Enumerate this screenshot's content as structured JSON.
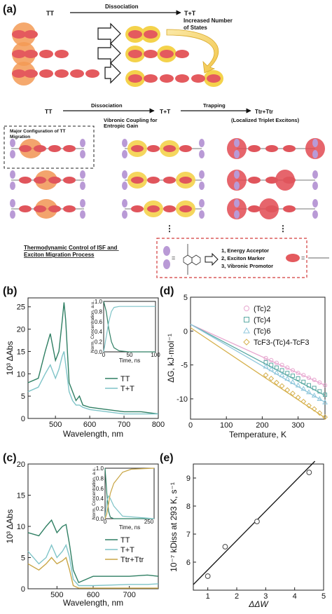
{
  "panel_a": {
    "label": "(a)",
    "top": {
      "TT": "TT",
      "arrow": "Dissociation",
      "TpT": "T+T",
      "note": "Increased Number\nof States"
    },
    "mid": {
      "TT": "TT",
      "dissociation": "Dissociation",
      "TpT": "T+T",
      "trapping": "Trapping",
      "Ttr": "Ttr+Ttr",
      "localized": "(Localized Triplet Excitons)",
      "migration": "Major Configuration of TT\nMigration",
      "vibronic": "Vibronic Coupling for\nEntropic Gain",
      "dots": "⋮"
    },
    "bottom": {
      "thermo": "Thermodynamic Control of ISF and\nExciton Migration Process",
      "roles": [
        "1, Energy Acceptor",
        "2, Exciton Marker",
        "3, Vibronic Promotor"
      ],
      "eq": "="
    }
  },
  "panel_b": {
    "label": "(b)",
    "ylabel": "10³ ΔAbs",
    "xlabel": "Wavelength, nm",
    "xticks": [
      "500",
      "600",
      "700",
      "800"
    ],
    "yticks": [
      "0",
      "5",
      "10",
      "15",
      "20",
      "25"
    ],
    "legend": [
      "TT",
      "T+T"
    ],
    "inset_ylabel": "Norm. Concentration, a.u.",
    "inset_xlabel": "Time, ns",
    "inset_xticks": [
      "0",
      "50",
      "100"
    ],
    "inset_yticks": [
      "0.0",
      "0.2",
      "0.4",
      "0.6",
      "0.8",
      "1.0"
    ]
  },
  "panel_c": {
    "label": "(c)",
    "ylabel": "10³ ΔAbs",
    "xlabel": "Wavelength, nm",
    "xticks": [
      "500",
      "600",
      "700"
    ],
    "yticks": [
      "0",
      "5",
      "10",
      "15",
      "20"
    ],
    "legend": [
      "TT",
      "T+T",
      "Ttr+Ttr"
    ],
    "inset_ylabel": "Norm. Concentration, a.u.",
    "inset_xlabel": "Time, ns",
    "inset_xticks": [
      "0",
      "250"
    ],
    "inset_yticks": [
      "0.0",
      "0.2",
      "0.4",
      "0.6",
      "0.8",
      "1.0"
    ]
  },
  "panel_d": {
    "label": "(d)",
    "ylabel": "ΔG, kJ·mol⁻¹",
    "xlabel": "Temperature, K",
    "xticks": [
      "0",
      "100",
      "200",
      "300"
    ],
    "yticks": [
      "5",
      "0",
      "-5",
      "-10"
    ],
    "legend": [
      "(Tc)2",
      "(Tc)4",
      "(Tc)6",
      "TcF3-(Tc)4-TcF3"
    ]
  },
  "panel_e": {
    "label": "(e)",
    "ylabel": "10⁻⁷ kDiss at 293 K, s⁻¹",
    "xlabel": "ΔΔW",
    "xticks": [
      "1",
      "2",
      "3",
      "4",
      "5"
    ],
    "yticks": [
      "6",
      "7",
      "8",
      "9"
    ]
  },
  "colors": {
    "tt": "#2f7f63",
    "tpt": "#7fc4c8",
    "ttr": "#c9a646",
    "pink": "#e7a6cf",
    "teal": "#5aa9a3",
    "skyblue": "#8fc7dc",
    "gold": "#d6b04c",
    "red": "#e0555c",
    "orange": "#f08d48",
    "yellow": "#f4d24b",
    "purple": "#b99ad6"
  },
  "chart_data": [
    {
      "type": "line",
      "panel": "b",
      "xlabel": "Wavelength, nm",
      "ylabel": "10³ ΔAbs",
      "xlim": [
        420,
        800
      ],
      "ylim": [
        0,
        27
      ],
      "series": [
        {
          "name": "TT",
          "x": [
            420,
            450,
            470,
            485,
            500,
            510,
            520,
            525,
            530,
            540,
            550,
            560,
            570,
            580,
            600,
            650,
            700,
            750,
            800
          ],
          "y": [
            8,
            9,
            15,
            19,
            13,
            15,
            22,
            26,
            22,
            8,
            6,
            4,
            5,
            3,
            2.5,
            2,
            1.5,
            1.5,
            1
          ]
        },
        {
          "name": "T+T",
          "x": [
            420,
            450,
            470,
            485,
            500,
            510,
            520,
            525,
            530,
            540,
            550,
            560,
            570,
            580,
            600,
            650,
            700,
            750,
            800
          ],
          "y": [
            6,
            7,
            10,
            12,
            9,
            11,
            14,
            15,
            12,
            6,
            4,
            3,
            3,
            2.5,
            2,
            1.5,
            1,
            1,
            1
          ]
        }
      ],
      "inset": {
        "xlabel": "Time, ns",
        "ylabel": "Norm. Concentration, a.u.",
        "xlim": [
          0,
          100
        ],
        "ylim": [
          0,
          1
        ],
        "series": [
          {
            "name": "TT",
            "x": [
              0,
              5,
              10,
              15,
              20,
              30,
              50,
              100
            ],
            "y": [
              1.0,
              0.8,
              0.45,
              0.2,
              0.08,
              0.02,
              0,
              0
            ]
          },
          {
            "name": "T+T",
            "x": [
              0,
              5,
              10,
              15,
              20,
              30,
              50,
              100
            ],
            "y": [
              0,
              0.3,
              0.6,
              0.8,
              0.88,
              0.9,
              0.9,
              0.9
            ]
          }
        ]
      }
    },
    {
      "type": "line",
      "panel": "c",
      "xlabel": "Wavelength, nm",
      "ylabel": "10³ ΔAbs",
      "xlim": [
        420,
        780
      ],
      "ylim": [
        0,
        20
      ],
      "series": [
        {
          "name": "TT",
          "x": [
            420,
            450,
            470,
            485,
            500,
            515,
            525,
            535,
            545,
            560,
            580,
            600,
            650,
            700,
            750,
            780
          ],
          "y": [
            9,
            8.5,
            10,
            11,
            9,
            10,
            10.3,
            7,
            3,
            1,
            1.5,
            2,
            2,
            2,
            2.2,
            2
          ]
        },
        {
          "name": "T+T",
          "x": [
            420,
            450,
            470,
            485,
            500,
            515,
            525,
            535,
            545,
            560,
            580,
            600,
            650,
            700,
            750,
            780
          ],
          "y": [
            6,
            4,
            5,
            7,
            5,
            6,
            7,
            5,
            1.5,
            0.5,
            0.5,
            0.5,
            0.6,
            0.7,
            0.7,
            0.8
          ]
        },
        {
          "name": "Ttr+Ttr",
          "x": [
            420,
            450,
            470,
            485,
            500,
            515,
            525,
            535,
            545,
            560,
            580,
            600,
            650,
            700,
            750,
            780
          ],
          "y": [
            4,
            3,
            4,
            5,
            4,
            4.5,
            5,
            3,
            0.5,
            0.1,
            0.1,
            0.1,
            0.1,
            0.1,
            0.1,
            0.1
          ]
        }
      ],
      "inset": {
        "xlabel": "Time, ns",
        "ylabel": "Norm. Concentration, a.u.",
        "xlim": [
          0,
          280
        ],
        "ylim": [
          0,
          1
        ],
        "series": [
          {
            "name": "TT",
            "x": [
              0,
              10,
              20,
              30,
              50,
              100,
              280
            ],
            "y": [
              1,
              0.5,
              0.15,
              0.03,
              0,
              0,
              0
            ]
          },
          {
            "name": "T+T",
            "x": [
              0,
              10,
              20,
              30,
              50,
              100,
              280
            ],
            "y": [
              0,
              0.35,
              0.45,
              0.4,
              0.25,
              0.05,
              0
            ]
          },
          {
            "name": "Ttr+Ttr",
            "x": [
              0,
              10,
              20,
              30,
              50,
              100,
              150,
              280
            ],
            "y": [
              0,
              0.1,
              0.3,
              0.5,
              0.7,
              0.92,
              0.98,
              1
            ]
          }
        ]
      }
    },
    {
      "type": "scatter",
      "panel": "d",
      "xlabel": "Temperature, K",
      "ylabel": "ΔG, kJ·mol⁻¹",
      "xlim": [
        0,
        375
      ],
      "ylim": [
        -13,
        5
      ],
      "series": [
        {
          "name": "(Tc)2",
          "fit": [
            [
              0,
              1
            ],
            [
              375,
              -8
            ]
          ],
          "x": [
            210,
            225,
            240,
            255,
            270,
            285,
            300,
            315,
            330,
            345,
            360,
            375
          ],
          "y": [
            -4,
            -4.3,
            -4.7,
            -5,
            -5.4,
            -5.8,
            -6.2,
            -6.5,
            -6.9,
            -7.2,
            -7.6,
            -8
          ]
        },
        {
          "name": "(Tc)4",
          "fit": [
            [
              0,
              1
            ],
            [
              375,
              -9.5
            ]
          ],
          "x": [
            210,
            225,
            240,
            255,
            270,
            285,
            300,
            315,
            330,
            345,
            360,
            375
          ],
          "y": [
            -4.6,
            -5,
            -5.4,
            -5.8,
            -6.2,
            -6.6,
            -7,
            -7.5,
            -8,
            -8.4,
            -8.9,
            -9.4
          ]
        },
        {
          "name": "(Tc)6",
          "fit": [
            [
              0,
              1
            ],
            [
              375,
              -10.5
            ]
          ],
          "x": [
            210,
            225,
            240,
            255,
            270,
            285,
            300,
            315,
            330,
            345,
            360,
            375
          ],
          "y": [
            -5.2,
            -5.6,
            -6.1,
            -6.5,
            -7,
            -7.5,
            -8,
            -8.5,
            -9,
            -9.5,
            -10,
            -10.5
          ]
        },
        {
          "name": "TcF3-(Tc)4-TcF3",
          "fit": [
            [
              0,
              0.5
            ],
            [
              375,
              -12.8
            ]
          ],
          "x": [
            210,
            225,
            240,
            255,
            270,
            285,
            300,
            315,
            330,
            345,
            360,
            375
          ],
          "y": [
            -6.5,
            -7,
            -7.6,
            -8.1,
            -8.7,
            -9.2,
            -9.8,
            -10.4,
            -11,
            -11.5,
            -12.1,
            -12.7
          ]
        }
      ]
    },
    {
      "type": "scatter",
      "panel": "e",
      "xlabel": "ΔΔW",
      "ylabel": "10⁻⁷ kDiss at 293 K, s⁻¹",
      "xlim": [
        0.5,
        5
      ],
      "ylim": [
        5,
        9.5
      ],
      "series": [
        {
          "name": "data",
          "x": [
            1.0,
            1.6,
            2.7,
            4.5
          ],
          "y": [
            5.5,
            6.55,
            7.45,
            9.2
          ]
        }
      ],
      "fit": [
        [
          0.5,
          5.2
        ],
        [
          4.7,
          9.6
        ]
      ]
    }
  ]
}
